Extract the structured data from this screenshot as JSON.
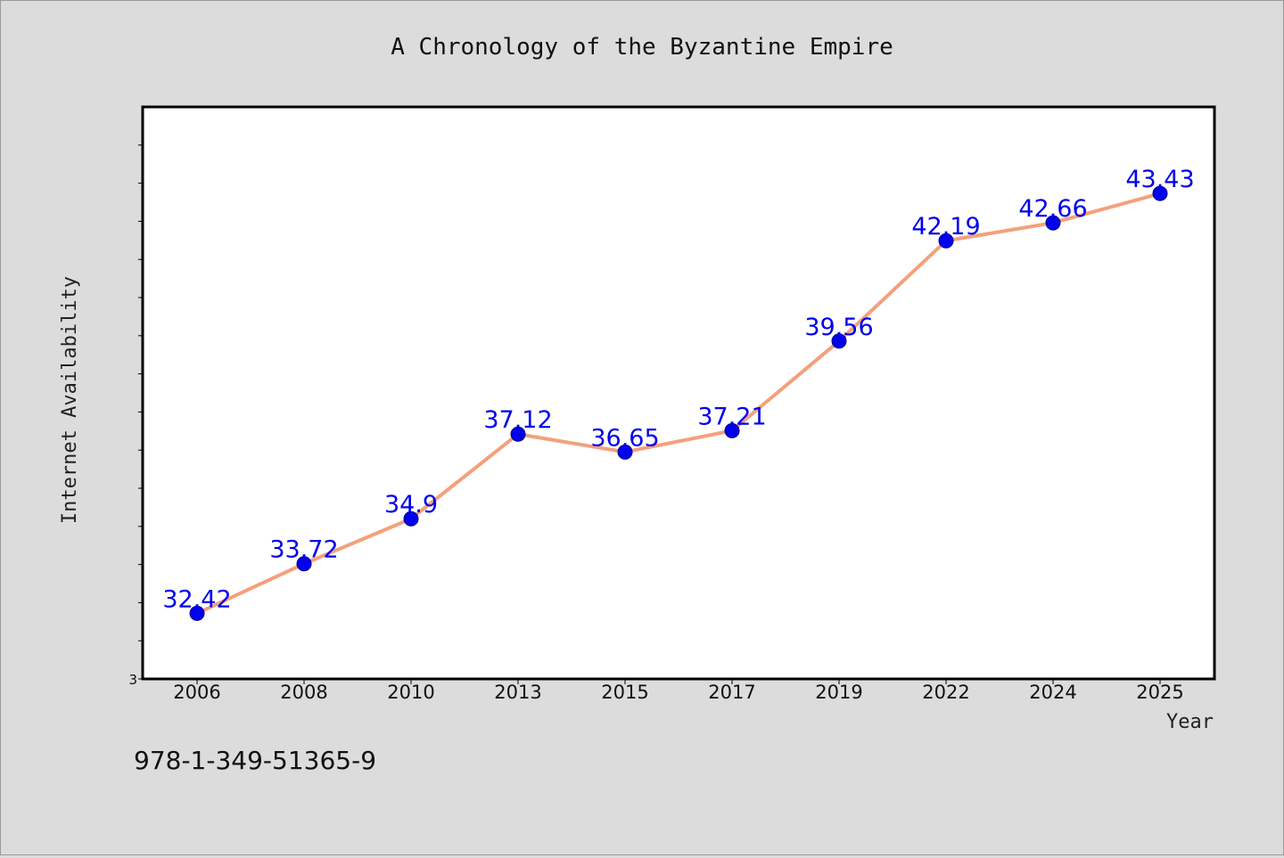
{
  "chart_data": {
    "type": "line",
    "title": "A Chronology of the Byzantine Empire",
    "xlabel": "Year",
    "ylabel": "Internet Availability",
    "categories": [
      "2006",
      "2008",
      "2010",
      "2013",
      "2015",
      "2017",
      "2019",
      "2022",
      "2024",
      "2025"
    ],
    "series": [
      {
        "values": [
          32.42,
          33.72,
          34.9,
          37.12,
          36.65,
          37.21,
          39.56,
          42.19,
          42.66,
          43.43
        ]
      }
    ],
    "data_labels": [
      "32.42",
      "33.72",
      "34.9",
      "37.12",
      "36.65",
      "37.21",
      "39.56",
      "42.19",
      "42.66",
      "43.43"
    ],
    "y_tick_labels": [
      "3"
    ],
    "ylim": [
      30.7,
      45.7
    ],
    "grid": false,
    "line_color": "#f4a07c",
    "marker_color": "#0000ee",
    "label_color": "#0000ee"
  },
  "footer": {
    "code": "978-1-349-51365-9"
  }
}
